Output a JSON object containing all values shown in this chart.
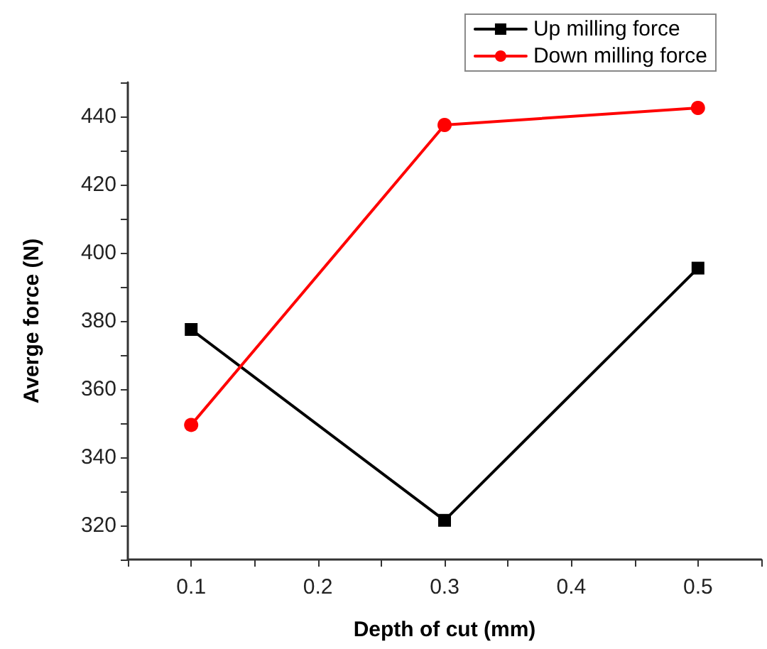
{
  "chart_data": {
    "type": "line",
    "xlabel": "Depth of cut (mm)",
    "ylabel": "Averge force (N)",
    "x": [
      0.1,
      0.3,
      0.5
    ],
    "series": [
      {
        "name": "Up milling force",
        "color": "#000000",
        "marker": "square",
        "values": [
          377.5,
          321.5,
          395.5
        ]
      },
      {
        "name": "Down milling force",
        "color": "#ff0000",
        "marker": "circle",
        "values": [
          349.5,
          437.5,
          442.5
        ]
      }
    ],
    "xlim": [
      0.05,
      0.55
    ],
    "xticks": [
      0.1,
      0.2,
      0.3,
      0.4,
      0.5
    ],
    "ylim": [
      310,
      450
    ],
    "yticks": [
      320,
      340,
      360,
      380,
      400,
      420,
      440
    ],
    "grid": false,
    "legend": "top right",
    "line_style": "solid"
  }
}
